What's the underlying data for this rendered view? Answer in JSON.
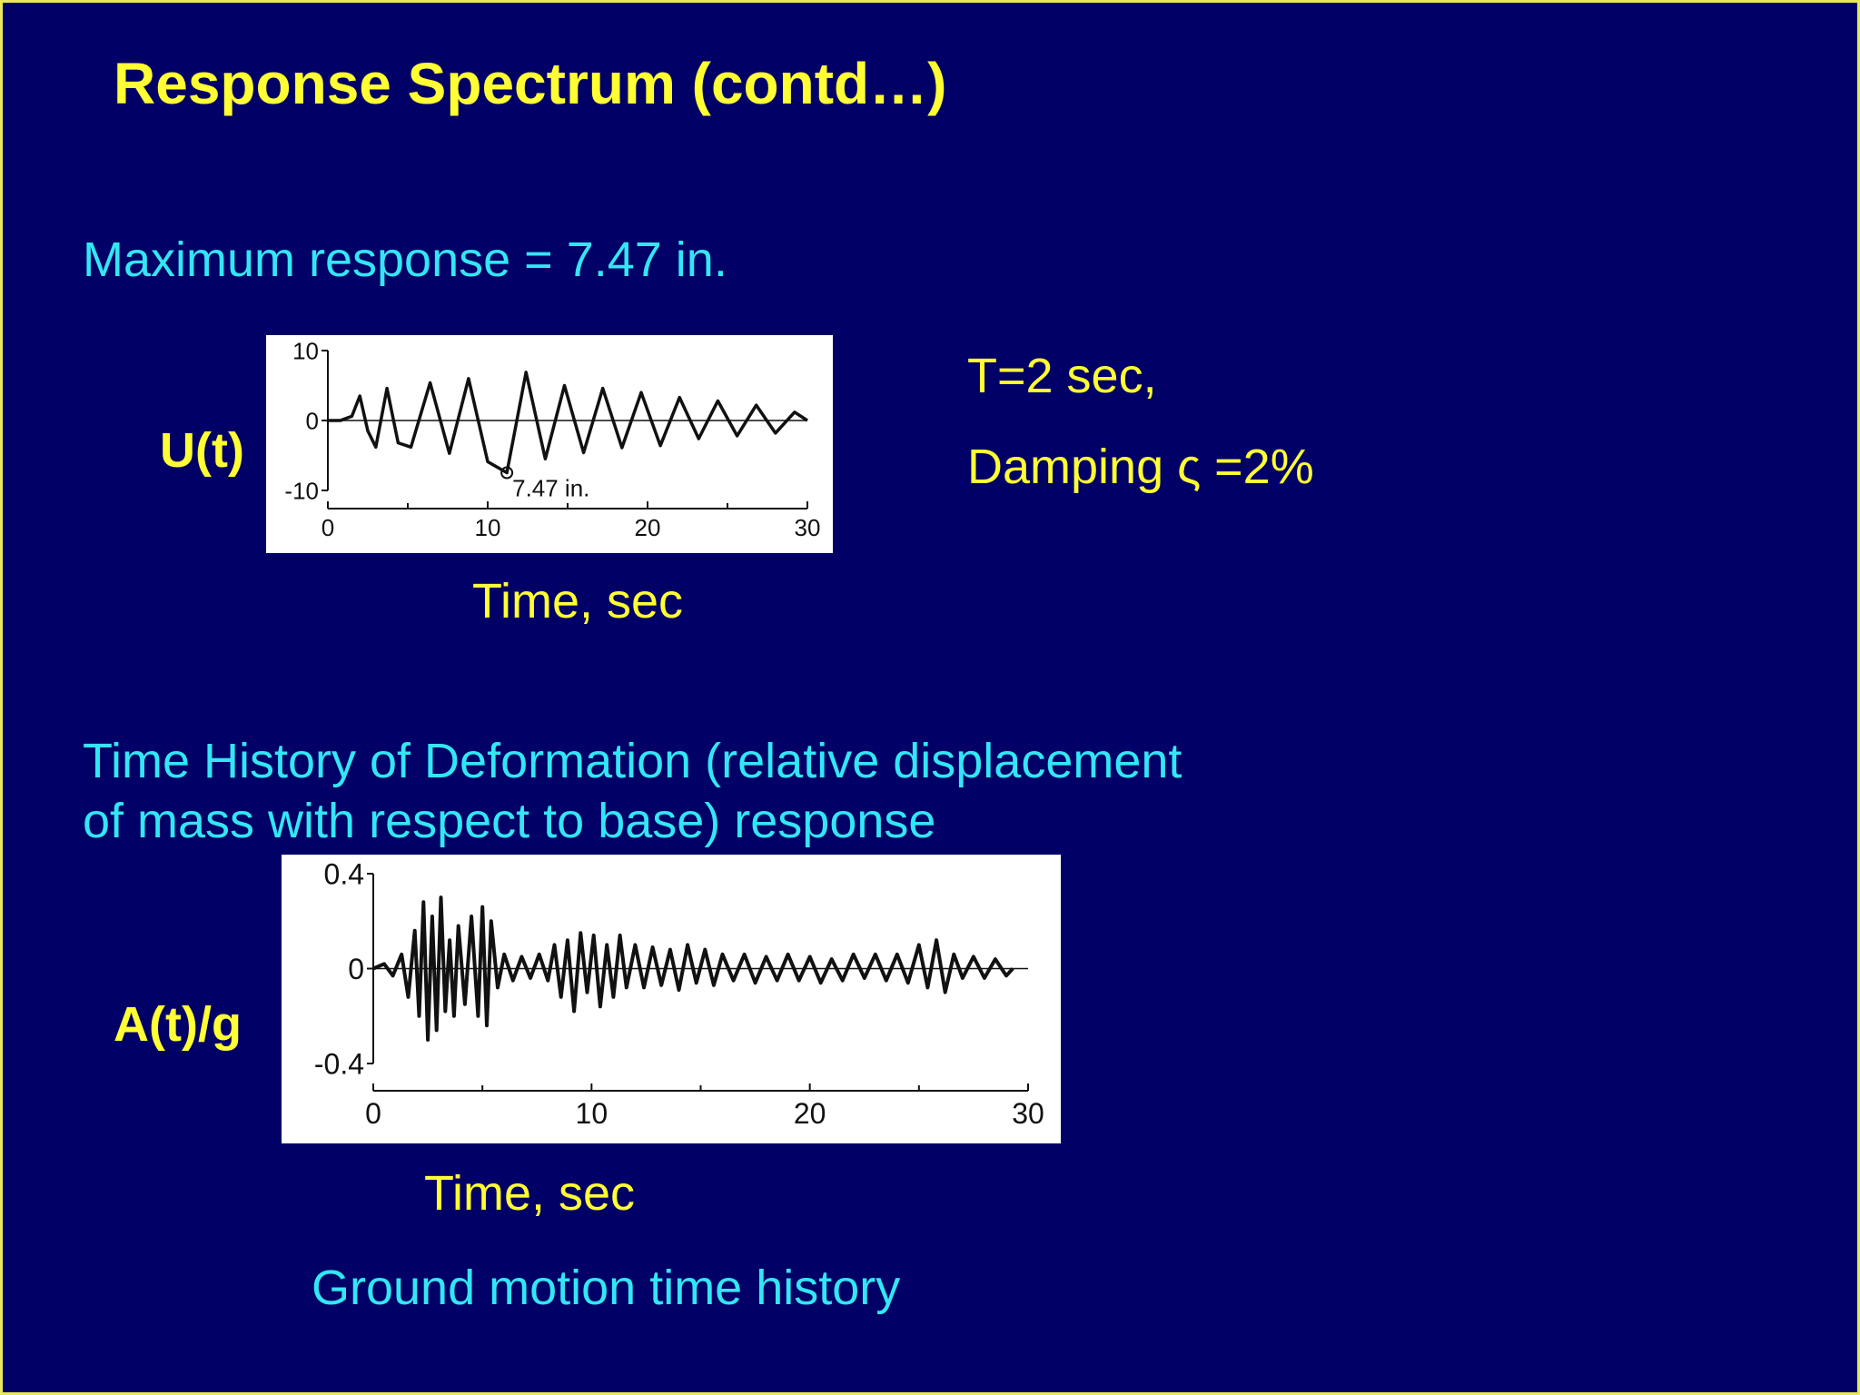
{
  "slide": {
    "title": "Response Spectrum (contd…)",
    "max_response": "Maximum response = 7.47 in.",
    "params_period": "T=2 sec,",
    "params_damping": "Damping ς =2%",
    "deformation_caption_line1": "Time History of Deformation (relative displacement",
    "deformation_caption_line2": "of mass with respect to base) response",
    "ground_motion_caption": "Ground motion time history",
    "colors": {
      "background": "#000066",
      "title": "#ffff33",
      "body_text": "#33e6f5",
      "border": "#e8e85a"
    }
  },
  "chart_data": [
    {
      "type": "line",
      "ylabel": "U(t)",
      "xlabel": "Time, sec",
      "xlim": [
        0,
        30
      ],
      "ylim": [
        -10,
        10
      ],
      "x_ticks": [
        0,
        10,
        20,
        30
      ],
      "y_ticks": [
        10,
        0,
        -10
      ],
      "annotation": "7.47 in.",
      "peak": {
        "x": 11.2,
        "y": -7.47
      },
      "series": [
        {
          "x": [
            0,
            0.8,
            1.0,
            1.5,
            2.0,
            2.5,
            3.0,
            3.7,
            4.4,
            5.2,
            6.4,
            7.6,
            8.8,
            10.0,
            11.2,
            12.4,
            13.6,
            14.8,
            16.0,
            17.2,
            18.4,
            19.6,
            20.8,
            22.0,
            23.2,
            24.4,
            25.6,
            26.8,
            28.0,
            29.2,
            30.0
          ],
          "y": [
            0,
            0,
            0.2,
            0.6,
            3.5,
            -1.5,
            -3.8,
            4.6,
            -3.2,
            -3.8,
            5.4,
            -4.7,
            6.0,
            -5.9,
            -7.47,
            6.9,
            -5.5,
            5.0,
            -4.6,
            4.6,
            -3.9,
            4.0,
            -3.6,
            3.3,
            -2.6,
            2.8,
            -2.2,
            2.2,
            -1.8,
            1.2,
            0.0
          ]
        }
      ]
    },
    {
      "type": "line",
      "ylabel": "A(t)/g",
      "xlabel": "Time, sec",
      "xlim": [
        0,
        30
      ],
      "ylim": [
        -0.4,
        0.4
      ],
      "x_ticks": [
        0,
        10,
        20,
        30
      ],
      "y_ticks": [
        0.4,
        0,
        -0.4
      ],
      "series": [
        {
          "x": [
            0,
            0.5,
            0.9,
            1.3,
            1.6,
            1.9,
            2.1,
            2.3,
            2.5,
            2.7,
            2.9,
            3.1,
            3.3,
            3.5,
            3.7,
            3.9,
            4.2,
            4.5,
            4.8,
            5.0,
            5.2,
            5.4,
            5.7,
            6.0,
            6.4,
            6.8,
            7.2,
            7.6,
            8.0,
            8.3,
            8.6,
            8.9,
            9.2,
            9.5,
            9.8,
            10.1,
            10.4,
            10.7,
            11.0,
            11.3,
            11.6,
            12.0,
            12.4,
            12.8,
            13.2,
            13.6,
            14.0,
            14.4,
            14.8,
            15.2,
            15.6,
            16.0,
            16.5,
            17.0,
            17.5,
            18.0,
            18.5,
            19.0,
            19.5,
            20.0,
            20.5,
            21.0,
            21.5,
            22.0,
            22.5,
            23.0,
            23.5,
            24.0,
            24.5,
            25.0,
            25.4,
            25.8,
            26.2,
            26.6,
            27.0,
            27.5,
            28.0,
            28.5,
            29.0,
            29.3
          ],
          "y": [
            0,
            0.02,
            -0.03,
            0.06,
            -0.12,
            0.16,
            -0.2,
            0.28,
            -0.3,
            0.22,
            -0.26,
            0.3,
            -0.18,
            0.12,
            -0.2,
            0.18,
            -0.15,
            0.22,
            -0.2,
            0.26,
            -0.24,
            0.2,
            -0.08,
            0.06,
            -0.05,
            0.05,
            -0.04,
            0.06,
            -0.05,
            0.1,
            -0.12,
            0.12,
            -0.18,
            0.15,
            -0.1,
            0.14,
            -0.16,
            0.1,
            -0.12,
            0.14,
            -0.08,
            0.1,
            -0.08,
            0.09,
            -0.07,
            0.08,
            -0.09,
            0.1,
            -0.06,
            0.08,
            -0.07,
            0.06,
            -0.05,
            0.06,
            -0.06,
            0.05,
            -0.05,
            0.06,
            -0.05,
            0.05,
            -0.06,
            0.04,
            -0.05,
            0.06,
            -0.04,
            0.06,
            -0.05,
            0.06,
            -0.06,
            0.1,
            -0.08,
            0.12,
            -0.1,
            0.06,
            -0.04,
            0.05,
            -0.04,
            0.04,
            -0.03,
            0.0
          ]
        }
      ]
    }
  ]
}
